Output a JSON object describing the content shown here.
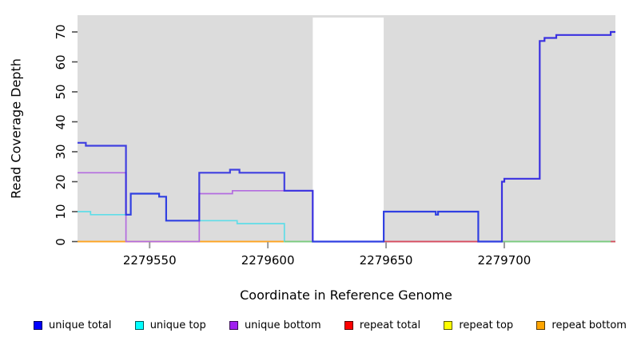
{
  "chart_data": {
    "type": "line",
    "subtype": "step-coverage",
    "title": "",
    "xlabel": "Coordinate in Reference Genome",
    "ylabel": "Read Coverage Depth",
    "xlim": [
      2279519.5,
      2279747
    ],
    "ylim": [
      0,
      75.6
    ],
    "xticks": [
      2279550,
      2279600,
      2279650,
      2279700
    ],
    "yticks": [
      0,
      10,
      20,
      30,
      40,
      50,
      60,
      70
    ],
    "grid": false,
    "plot_bg": "#dcdcdc",
    "page_bg": "#ffffff",
    "mask_region": {
      "x0": 2279619,
      "x1": 2279649,
      "color": "#ffffff"
    },
    "x_end": 2279747,
    "series": [
      {
        "name": "repeat total",
        "color": "#dc2f3f",
        "width": 1.4,
        "opacity": 1,
        "points": [
          [
            2279519.5,
            0
          ]
        ]
      },
      {
        "name": "repeat top",
        "color": "#f5e642",
        "width": 1.4,
        "opacity": 1,
        "points": [
          [
            2279519.5,
            0
          ]
        ]
      },
      {
        "name": "repeat bottom",
        "color": "#ffa520",
        "width": 1.8,
        "opacity": 1,
        "points": [
          [
            2279519.5,
            0
          ]
        ]
      },
      {
        "name": "unique bottom",
        "color": "#b36bdf",
        "width": 1.7,
        "opacity": 1,
        "points": [
          [
            2279519.5,
            23
          ],
          [
            2279540,
            0
          ],
          [
            2279571,
            16
          ],
          [
            2279585,
            17
          ],
          [
            2279619,
            0
          ],
          [
            2279699,
            20
          ],
          [
            2279700,
            21
          ],
          [
            2279715,
            67
          ],
          [
            2279717,
            68
          ],
          [
            2279722,
            69
          ],
          [
            2279745,
            70
          ]
        ]
      },
      {
        "name": "unique top",
        "color": "#5fdde8",
        "width": 1.7,
        "opacity": 1,
        "points": [
          [
            2279519.5,
            10
          ],
          [
            2279525,
            9
          ],
          [
            2279542,
            16
          ],
          [
            2279554,
            15
          ],
          [
            2279557,
            7
          ],
          [
            2279587,
            6
          ],
          [
            2279607,
            0
          ],
          [
            2279649,
            10
          ],
          [
            2279671,
            9
          ],
          [
            2279672,
            10
          ],
          [
            2279689,
            0
          ]
        ]
      },
      {
        "name": "unique total",
        "color": "#2424e0",
        "width": 2.2,
        "opacity": 0.85,
        "points": [
          [
            2279519.5,
            33
          ],
          [
            2279523,
            32
          ],
          [
            2279540,
            9
          ],
          [
            2279542,
            16
          ],
          [
            2279554,
            15
          ],
          [
            2279557,
            7
          ],
          [
            2279571,
            23
          ],
          [
            2279584,
            24
          ],
          [
            2279588,
            23
          ],
          [
            2279607,
            17
          ],
          [
            2279619,
            0
          ],
          [
            2279649,
            10
          ],
          [
            2279671,
            9
          ],
          [
            2279672,
            10
          ],
          [
            2279689,
            0
          ],
          [
            2279699,
            20
          ],
          [
            2279700,
            21
          ],
          [
            2279715,
            67
          ],
          [
            2279717,
            68
          ],
          [
            2279722,
            69
          ],
          [
            2279745,
            70
          ]
        ]
      }
    ],
    "zero_segments": [
      {
        "x0": 2279607,
        "x1": 2279619,
        "color": "#7ccb7c"
      },
      {
        "x0": 2279699,
        "x1": 2279745,
        "color": "#7ccb7c"
      },
      {
        "x0": 2279649,
        "x1": 2279689,
        "color": "#d84c5c"
      },
      {
        "x0": 2279745,
        "x1": 2279747,
        "color": "#d84c5c"
      }
    ],
    "legend_position": "bottom",
    "legend": [
      {
        "label": "unique total",
        "color": "#0000ff"
      },
      {
        "label": "unique top",
        "color": "#00ffff"
      },
      {
        "label": "unique bottom",
        "color": "#a020f0"
      },
      {
        "label": "repeat total",
        "color": "#ff0000"
      },
      {
        "label": "repeat top",
        "color": "#ffff00"
      },
      {
        "label": "repeat bottom",
        "color": "#ffa500"
      }
    ],
    "axis_colors": {
      "x_tick": "#9a9a9a",
      "y_tick": "#4d4d4d"
    }
  }
}
